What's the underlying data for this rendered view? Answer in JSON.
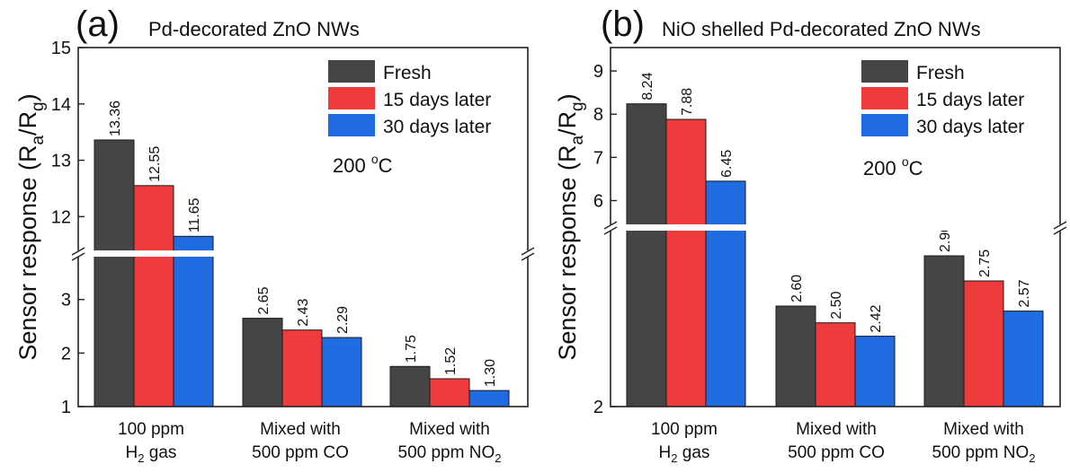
{
  "colors": {
    "fresh": "#454545",
    "d15": "#ee3b3b",
    "d30": "#1f6be0"
  },
  "ylabel_main": "Sensor response (R",
  "ylabel_sub_a": "a",
  "ylabel_slash": "/R",
  "ylabel_sub_g": "g",
  "ylabel_close": ")",
  "xlabels": [
    {
      "l1": "100 ppm",
      "l2a": "H",
      "l2sub": "2",
      "l2b": " gas"
    },
    {
      "l1": "Mixed with",
      "l2a": "500 ppm CO",
      "l2sub": "",
      "l2b": ""
    },
    {
      "l1": "Mixed with",
      "l2a": "500 ppm NO",
      "l2sub": "2",
      "l2b": ""
    }
  ],
  "chart_data": [
    {
      "type": "bar",
      "panel_label": "(a)",
      "title": "Pd-decorated ZnO NWs",
      "annotation": "200 °C",
      "annotation_main": "200 ",
      "annotation_sup": "o",
      "annotation_unit": "C",
      "categories": [
        "100 ppm H2 gas",
        "Mixed with 500 ppm CO",
        "Mixed with 500 ppm NO2"
      ],
      "series": [
        {
          "name": "Fresh",
          "values": [
            13.36,
            2.65,
            1.75
          ]
        },
        {
          "name": "15 days later",
          "values": [
            12.55,
            2.43,
            1.52
          ]
        },
        {
          "name": "30 days later",
          "values": [
            11.65,
            2.29,
            1.3
          ]
        }
      ],
      "value_labels": [
        [
          "13.36",
          "2.65",
          "1.75"
        ],
        [
          "12.55",
          "2.43",
          "1.52"
        ],
        [
          "11.65",
          "2.29",
          "1.30"
        ]
      ],
      "ylim_lower": [
        1,
        3.8
      ],
      "ylim_upper": [
        11.4,
        15
      ],
      "yticks_lower": [
        "1",
        "2",
        "3"
      ],
      "yticks_upper": [
        "12",
        "13",
        "14",
        "15"
      ],
      "legend": "top-right",
      "grid": false
    },
    {
      "type": "bar",
      "panel_label": "(b)",
      "title": "NiO shelled Pd-decorated ZnO NWs",
      "annotation": "200 °C",
      "annotation_main": "200 ",
      "annotation_sup": "o",
      "annotation_unit": "C",
      "categories": [
        "100 ppm H2 gas",
        "Mixed with 500 ppm CO",
        "Mixed with 500 ppm NO2"
      ],
      "series": [
        {
          "name": "Fresh",
          "values": [
            8.24,
            2.6,
            2.9
          ]
        },
        {
          "name": "15 days later",
          "values": [
            7.88,
            2.5,
            2.75
          ]
        },
        {
          "name": "30 days later",
          "values": [
            6.45,
            2.42,
            2.57
          ]
        }
      ],
      "value_labels": [
        [
          "8.24",
          "2.60",
          "2.90"
        ],
        [
          "7.88",
          "2.50",
          "2.75"
        ],
        [
          "6.45",
          "2.42",
          "2.57"
        ]
      ],
      "ylim_lower": [
        2,
        3.05
      ],
      "ylim_upper": [
        5.45,
        9.5
      ],
      "yticks_lower": [
        "2"
      ],
      "yticks_upper": [
        "6",
        "7",
        "8",
        "9"
      ],
      "legend": "top-right",
      "grid": false
    }
  ]
}
